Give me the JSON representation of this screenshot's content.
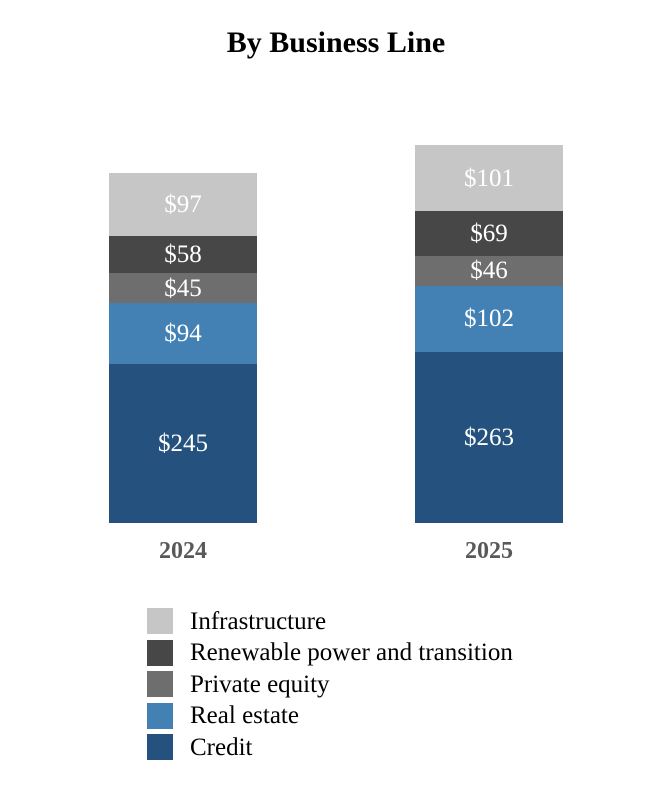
{
  "chart_data": {
    "type": "bar",
    "stacked": true,
    "title": "By Business Line",
    "categories": [
      "2024",
      "2025"
    ],
    "series": [
      {
        "name": "Infrastructure",
        "color": "#C6C6C6",
        "values": [
          97,
          101
        ]
      },
      {
        "name": "Renewable power and transition",
        "color": "#474747",
        "values": [
          58,
          69
        ]
      },
      {
        "name": "Private equity",
        "color": "#6E6E6E",
        "values": [
          45,
          46
        ]
      },
      {
        "name": "Real estate",
        "color": "#4381B5",
        "values": [
          94,
          102
        ]
      },
      {
        "name": "Credit",
        "color": "#24517D",
        "values": [
          245,
          263
        ]
      }
    ],
    "totals": [
      539,
      581
    ],
    "value_prefix": "$",
    "value_label_color": "#FFFFFF",
    "category_label_color": "#595959",
    "title_color": "#000000",
    "legend_position": "bottom-left",
    "grid": false,
    "axis_lines": false
  }
}
